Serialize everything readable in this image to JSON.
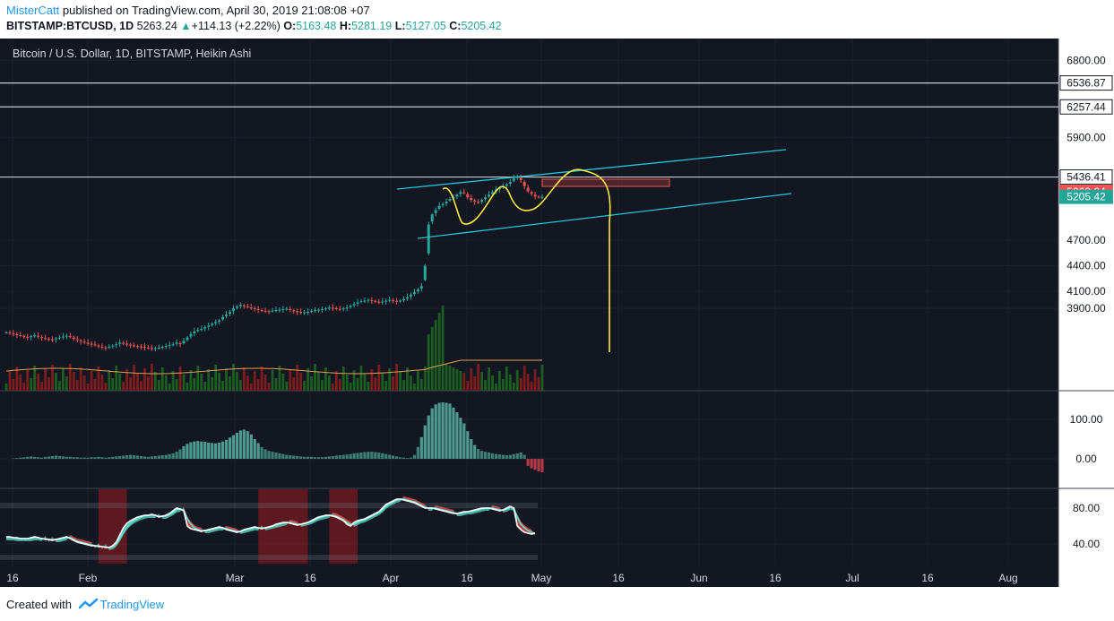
{
  "header": {
    "author": "MisterCatt",
    "published_text": "published on TradingView.com, April 30, 2019 21:08:08 +07",
    "symbol": "BITSTAMP:BTCUSD, 1D",
    "last": "5263.24",
    "change_arrow": "▲",
    "change": "+114.13 (+2.22%)",
    "o_label": "O:",
    "o_val": "5163.48",
    "h_label": "H:",
    "h_val": "5281.19",
    "l_label": "L:",
    "l_val": "5127.05",
    "c_label": "C:",
    "c_val": "5205.42"
  },
  "footer": {
    "created_with": "Created with",
    "brand": "TradingView"
  },
  "colors": {
    "background": "#131722",
    "up": "#26a69a",
    "down": "#ef5350",
    "channel": "#22c3d6",
    "projection": "#ffeb3b",
    "hline": "#c8ccd4"
  },
  "chart_data": [
    {
      "type": "candlestick",
      "title": "Bitcoin / U.S. Dollar, 1D, BITSTAMP, Heikin Ashi",
      "price_ticks": [
        "6800.00",
        "5900.00",
        "4700.00",
        "4400.00",
        "4100.00",
        "3900.00"
      ],
      "price_tick_values": [
        6800,
        5900,
        4700,
        4400,
        4100,
        3900
      ],
      "x_ticks": [
        "16",
        "Feb",
        "Mar",
        "16",
        "Apr",
        "16",
        "May",
        "16",
        "Jun",
        "16",
        "Jul",
        "16",
        "Aug"
      ],
      "horizontal_levels": [
        {
          "label": "6536.87",
          "value": 6536.87
        },
        {
          "label": "6257.44",
          "value": 6257.44
        },
        {
          "label": "5436.41",
          "value": 5436.41
        }
      ],
      "price_labels": [
        {
          "label": "5263.24",
          "value": 5263.24,
          "color": "#ef5350"
        },
        {
          "label": "5205.42",
          "value": 5205.42,
          "color": "#26a69a"
        }
      ],
      "candles_close": [
        3620,
        3610,
        3600,
        3590,
        3580,
        3570,
        3560,
        3575,
        3585,
        3570,
        3555,
        3545,
        3540,
        3535,
        3550,
        3560,
        3570,
        3580,
        3565,
        3545,
        3530,
        3515,
        3500,
        3490,
        3480,
        3470,
        3455,
        3445,
        3440,
        3450,
        3465,
        3480,
        3500,
        3490,
        3480,
        3470,
        3460,
        3455,
        3450,
        3445,
        3440,
        3430,
        3435,
        3440,
        3450,
        3460,
        3470,
        3480,
        3500,
        3480,
        3520,
        3560,
        3600,
        3630,
        3650,
        3660,
        3680,
        3700,
        3720,
        3740,
        3760,
        3800,
        3830,
        3860,
        3900,
        3920,
        3940,
        3930,
        3915,
        3905,
        3895,
        3880,
        3875,
        3870,
        3865,
        3875,
        3880,
        3885,
        3890,
        3895,
        3880,
        3870,
        3860,
        3850,
        3855,
        3860,
        3870,
        3880,
        3885,
        3890,
        3900,
        3910,
        3905,
        3895,
        3890,
        3900,
        3910,
        3930,
        3950,
        3970,
        3985,
        3990,
        4000,
        3990,
        3980,
        3975,
        3980,
        3990,
        4000,
        3990,
        3980,
        3990,
        4010,
        4030,
        4060,
        4090,
        4120,
        4160,
        4400,
        4880,
        5000,
        5050,
        5100,
        5120,
        5150,
        5180,
        5200,
        5230,
        5260,
        5250,
        5200,
        5170,
        5150,
        5140,
        5170,
        5200,
        5230,
        5260,
        5290,
        5310,
        5330,
        5350,
        5380,
        5420,
        5440,
        5400,
        5330,
        5270,
        5240,
        5210,
        5200,
        5205
      ],
      "ma_volume_note": "orange line",
      "volume": "shown as histogram under price"
    },
    {
      "type": "bar",
      "title": "",
      "ticks": [
        "100.00",
        "0.00"
      ],
      "tick_values": [
        100,
        0
      ],
      "values": [
        0,
        0,
        1,
        2,
        3,
        4,
        5,
        6,
        5,
        4,
        3,
        5,
        6,
        7,
        8,
        7,
        6,
        5,
        5,
        4,
        4,
        3,
        3,
        3,
        4,
        4,
        5,
        4,
        3,
        4,
        5,
        6,
        7,
        8,
        9,
        10,
        9,
        8,
        7,
        6,
        5,
        6,
        7,
        8,
        9,
        10,
        12,
        14,
        18,
        24,
        32,
        38,
        42,
        44,
        45,
        44,
        43,
        41,
        40,
        39,
        41,
        44,
        48,
        54,
        60,
        66,
        72,
        74,
        70,
        62,
        50,
        40,
        30,
        24,
        20,
        18,
        16,
        14,
        12,
        10,
        9,
        8,
        7,
        6,
        5,
        5,
        5,
        4,
        4,
        4,
        5,
        6,
        7,
        8,
        9,
        10,
        11,
        12,
        14,
        15,
        16,
        17,
        18,
        18,
        17,
        16,
        14,
        12,
        10,
        8,
        6,
        4,
        3,
        2,
        3,
        10,
        30,
        55,
        85,
        110,
        128,
        138,
        142,
        143,
        142,
        140,
        130,
        118,
        104,
        90,
        70,
        50,
        35,
        25,
        20,
        18,
        16,
        14,
        12,
        11,
        10,
        9,
        10,
        12,
        14,
        16,
        10,
        -18,
        -24,
        -28,
        -32,
        -34
      ]
    },
    {
      "type": "line",
      "title": "",
      "ticks": [
        "80.00",
        "40.00"
      ],
      "tick_values": [
        80,
        40
      ],
      "k": [
        48,
        48,
        47,
        47,
        46,
        46,
        46,
        47,
        48,
        47,
        46,
        45,
        45,
        44,
        45,
        46,
        47,
        48,
        46,
        44,
        42,
        41,
        40,
        39,
        38,
        38,
        37,
        37,
        36,
        36,
        38,
        42,
        50,
        58,
        63,
        66,
        68,
        70,
        71,
        72,
        72,
        73,
        72,
        70,
        71,
        72,
        74,
        77,
        80,
        79,
        77,
        60,
        57,
        56,
        55,
        54,
        55,
        56,
        57,
        58,
        59,
        58,
        56,
        55,
        54,
        53,
        54,
        56,
        57,
        58,
        59,
        58,
        57,
        58,
        59,
        60,
        62,
        63,
        64,
        64,
        63,
        62,
        61,
        62,
        63,
        64,
        66,
        68,
        70,
        71,
        72,
        72,
        71,
        70,
        68,
        66,
        62,
        60,
        64,
        66,
        67,
        68,
        70,
        72,
        74,
        76,
        80,
        84,
        86,
        88,
        90,
        90,
        89,
        88,
        87,
        86,
        84,
        82,
        80,
        80,
        80,
        79,
        78,
        77,
        76,
        75,
        74,
        74,
        75,
        76,
        76,
        77,
        78,
        79,
        80,
        80,
        80,
        79,
        78,
        77,
        78,
        80,
        82,
        80,
        60,
        56,
        53,
        52,
        51,
        52
      ],
      "d": [
        47,
        47,
        47,
        46,
        46,
        46,
        46,
        46,
        47,
        47,
        46,
        46,
        45,
        45,
        45,
        45,
        46,
        47,
        47,
        45,
        43,
        42,
        41,
        40,
        39,
        38,
        38,
        37,
        37,
        36,
        37,
        40,
        46,
        53,
        59,
        63,
        66,
        68,
        70,
        71,
        72,
        72,
        72,
        71,
        71,
        71,
        73,
        75,
        78,
        79,
        78,
        68,
        62,
        58,
        56,
        55,
        55,
        55,
        56,
        57,
        58,
        58,
        57,
        56,
        55,
        54,
        54,
        55,
        56,
        57,
        58,
        58,
        58,
        58,
        59,
        60,
        61,
        62,
        63,
        64,
        64,
        63,
        62,
        62,
        63,
        64,
        65,
        67,
        69,
        70,
        71,
        72,
        72,
        71,
        69,
        67,
        64,
        62,
        62,
        64,
        66,
        67,
        69,
        71,
        73,
        75,
        78,
        82,
        85,
        87,
        89,
        90,
        90,
        89,
        88,
        87,
        85,
        83,
        81,
        80,
        80,
        80,
        79,
        78,
        77,
        76,
        75,
        74,
        74,
        75,
        76,
        76,
        77,
        78,
        79,
        80,
        80,
        80,
        79,
        78,
        78,
        79,
        81,
        80,
        70,
        62,
        58,
        55,
        53,
        52
      ],
      "overbought_bands": [
        [
          26,
          34
        ],
        [
          71,
          85
        ],
        [
          91,
          99
        ]
      ]
    }
  ]
}
